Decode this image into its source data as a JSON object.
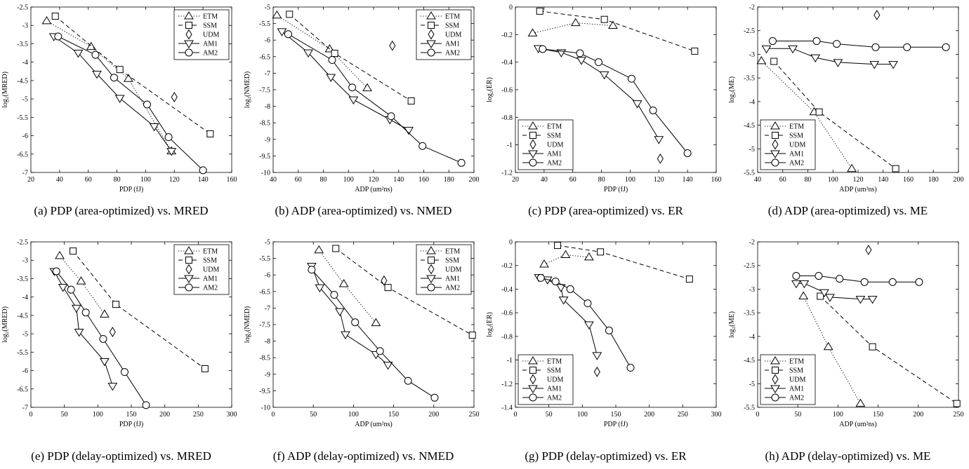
{
  "figure": {
    "panels": [
      {
        "caption": "(a) PDP (area-optimized) vs. MRED"
      },
      {
        "caption": "(b) ADP (area-optimized) vs. NMED"
      },
      {
        "caption": "(c) PDP (area-optimized) vs. ER"
      },
      {
        "caption": "(d) ADP (area-optimized) vs. ME"
      },
      {
        "caption": "(e) PDP (delay-optimized) vs. MRED"
      },
      {
        "caption": "(f) ADP (delay-optimized) vs. NMED"
      },
      {
        "caption": "(g) PDP (delay-optimized) vs. ER"
      },
      {
        "caption": "(h) ADP (delay-optimized) vs. ME"
      }
    ]
  },
  "chart_data": [
    {
      "type": "line",
      "xlabel": "PDP (fJ)",
      "ylabel": "log₂(MRED)",
      "xlim": [
        20,
        160
      ],
      "ylim": [
        -7,
        -2.5
      ],
      "xticks": [
        20,
        40,
        60,
        80,
        100,
        120,
        140,
        160
      ],
      "yticks": [
        -7,
        -6.5,
        -6,
        -5.5,
        -5,
        -4.5,
        -4,
        -3.5,
        -3,
        -2.5
      ],
      "legend_position": "top-right",
      "grid": false,
      "series": [
        {
          "name": "ETM",
          "points": [
            [
              31,
              -2.88
            ],
            [
              62,
              -3.58
            ],
            [
              88,
              -4.45
            ],
            [
              118,
              -6.42
            ]
          ]
        },
        {
          "name": "SSM",
          "points": [
            [
              37,
              -2.75
            ],
            [
              82,
              -4.2
            ],
            [
              145,
              -5.95
            ]
          ]
        },
        {
          "name": "UDM",
          "points": [
            [
              120,
              -4.95
            ]
          ]
        },
        {
          "name": "AM1",
          "points": [
            [
              36,
              -3.3
            ],
            [
              53,
              -3.75
            ],
            [
              66,
              -4.32
            ],
            [
              82,
              -4.98
            ],
            [
              106,
              -5.75
            ],
            [
              118,
              -6.42
            ]
          ]
        },
        {
          "name": "AM2",
          "points": [
            [
              39,
              -3.3
            ],
            [
              65,
              -3.8
            ],
            [
              78,
              -4.42
            ],
            [
              101,
              -5.15
            ],
            [
              116,
              -6.04
            ],
            [
              140,
              -6.94
            ]
          ]
        }
      ]
    },
    {
      "type": "line",
      "xlabel": "ADP (um²ns)",
      "ylabel": "log₂(NMED)",
      "xlim": [
        40,
        200
      ],
      "ylim": [
        -10,
        -5
      ],
      "xticks": [
        40,
        60,
        80,
        100,
        120,
        140,
        160,
        180,
        200
      ],
      "yticks": [
        -10,
        -9.5,
        -9,
        -8.5,
        -8,
        -7.5,
        -7,
        -6.5,
        -6,
        -5.5,
        -5
      ],
      "legend_position": "top-right",
      "grid": false,
      "series": [
        {
          "name": "ETM",
          "points": [
            [
              43,
              -5.25
            ],
            [
              85,
              -6.27
            ],
            [
              115,
              -7.45
            ]
          ]
        },
        {
          "name": "SSM",
          "points": [
            [
              53,
              -5.22
            ],
            [
              89,
              -6.4
            ],
            [
              150,
              -7.84
            ]
          ]
        },
        {
          "name": "UDM",
          "points": [
            [
              135,
              -6.17
            ]
          ]
        },
        {
          "name": "AM1",
          "points": [
            [
              47,
              -5.74
            ],
            [
              68,
              -6.38
            ],
            [
              86,
              -7.12
            ],
            [
              104,
              -7.8
            ],
            [
              133,
              -8.4
            ],
            [
              148,
              -8.72
            ]
          ]
        },
        {
          "name": "AM2",
          "points": [
            [
              52,
              -5.82
            ],
            [
              87,
              -6.6
            ],
            [
              103,
              -7.43
            ],
            [
              134,
              -8.3
            ],
            [
              159,
              -9.2
            ],
            [
              190,
              -9.71
            ]
          ]
        }
      ]
    },
    {
      "type": "line",
      "xlabel": "PDP (fJ)",
      "ylabel": "log₂(ER)",
      "xlim": [
        20,
        160
      ],
      "ylim": [
        -1.2,
        0
      ],
      "xticks": [
        20,
        40,
        60,
        80,
        100,
        120,
        140,
        160
      ],
      "yticks": [
        -1.2,
        -1,
        -0.8,
        -0.6,
        -0.4,
        -0.2,
        0
      ],
      "legend_position": "bottom-left",
      "grid": false,
      "series": [
        {
          "name": "ETM",
          "points": [
            [
              32,
              -0.19
            ],
            [
              62,
              -0.115
            ],
            [
              88,
              -0.135
            ]
          ]
        },
        {
          "name": "SSM",
          "points": [
            [
              37,
              -0.03
            ],
            [
              82,
              -0.09
            ],
            [
              145,
              -0.32
            ]
          ]
        },
        {
          "name": "UDM",
          "points": [
            [
              121,
              -1.1
            ]
          ]
        },
        {
          "name": "AM1",
          "points": [
            [
              36,
              -0.3
            ],
            [
              52,
              -0.33
            ],
            [
              66,
              -0.385
            ],
            [
              82,
              -0.49
            ],
            [
              105,
              -0.7
            ],
            [
              120,
              -0.96
            ]
          ]
        },
        {
          "name": "AM2",
          "points": [
            [
              39,
              -0.305
            ],
            [
              65,
              -0.335
            ],
            [
              78,
              -0.4
            ],
            [
              101,
              -0.52
            ],
            [
              116,
              -0.75
            ],
            [
              140,
              -1.06
            ]
          ]
        }
      ]
    },
    {
      "type": "line",
      "xlabel": "ADP (um²ns)",
      "ylabel": "log₂(ME)",
      "xlim": [
        40,
        200
      ],
      "ylim": [
        -5.5,
        -2
      ],
      "xticks": [
        40,
        60,
        80,
        100,
        120,
        140,
        160,
        180,
        200
      ],
      "yticks": [
        -5.5,
        -5,
        -4.5,
        -4,
        -3.5,
        -3,
        -2.5,
        -2
      ],
      "legend_position": "bottom-left",
      "grid": false,
      "series": [
        {
          "name": "ETM",
          "points": [
            [
              43,
              -3.14
            ],
            [
              85,
              -4.22
            ],
            [
              115,
              -5.42
            ]
          ]
        },
        {
          "name": "SSM",
          "points": [
            [
              53,
              -3.15
            ],
            [
              89,
              -4.22
            ],
            [
              150,
              -5.42
            ]
          ]
        },
        {
          "name": "UDM",
          "points": [
            [
              135,
              -2.17
            ]
          ]
        },
        {
          "name": "AM1",
          "points": [
            [
              47,
              -2.88
            ],
            [
              68,
              -2.88
            ],
            [
              86,
              -3.07
            ],
            [
              104,
              -3.17
            ],
            [
              133,
              -3.21
            ],
            [
              148,
              -3.21
            ]
          ]
        },
        {
          "name": "AM2",
          "points": [
            [
              52,
              -2.72
            ],
            [
              87,
              -2.72
            ],
            [
              103,
              -2.78
            ],
            [
              134,
              -2.85
            ],
            [
              159,
              -2.85
            ],
            [
              190,
              -2.85
            ]
          ]
        }
      ]
    },
    {
      "type": "line",
      "xlabel": "PDP (fJ)",
      "ylabel": "log₂(MRED)",
      "xlim": [
        0,
        300
      ],
      "ylim": [
        -7,
        -2.5
      ],
      "xticks": [
        0,
        50,
        100,
        150,
        200,
        250,
        300
      ],
      "yticks": [
        -7,
        -6.5,
        -6,
        -5.5,
        -5,
        -4.5,
        -4,
        -3.5,
        -3,
        -2.5
      ],
      "legend_position": "top-right",
      "grid": false,
      "series": [
        {
          "name": "ETM",
          "points": [
            [
              43,
              -2.88
            ],
            [
              75,
              -3.57
            ],
            [
              110,
              -4.47
            ]
          ]
        },
        {
          "name": "SSM",
          "points": [
            [
              63,
              -2.75
            ],
            [
              127,
              -4.2
            ],
            [
              260,
              -5.95
            ]
          ]
        },
        {
          "name": "UDM",
          "points": [
            [
              122,
              -4.95
            ]
          ]
        },
        {
          "name": "AM1",
          "points": [
            [
              35,
              -3.3
            ],
            [
              48,
              -3.73
            ],
            [
              68,
              -4.3
            ],
            [
              72,
              -4.95
            ],
            [
              110,
              -5.75
            ],
            [
              122,
              -6.42
            ]
          ]
        },
        {
          "name": "AM2",
          "points": [
            [
              38,
              -3.3
            ],
            [
              60,
              -3.8
            ],
            [
              82,
              -4.42
            ],
            [
              108,
              -5.14
            ],
            [
              140,
              -6.04
            ],
            [
              172,
              -6.94
            ]
          ]
        }
      ]
    },
    {
      "type": "line",
      "xlabel": "ADP (um²ns)",
      "ylabel": "log₂(NMED)",
      "xlim": [
        0,
        250
      ],
      "ylim": [
        -10,
        -5
      ],
      "xticks": [
        0,
        50,
        100,
        150,
        200,
        250
      ],
      "yticks": [
        -10,
        -9.5,
        -9,
        -8.5,
        -8,
        -7.5,
        -7,
        -6.5,
        -6,
        -5.5,
        -5
      ],
      "legend_position": "top-right",
      "grid": false,
      "series": [
        {
          "name": "ETM",
          "points": [
            [
              57,
              -5.25
            ],
            [
              88,
              -6.27
            ],
            [
              128,
              -7.45
            ]
          ]
        },
        {
          "name": "SSM",
          "points": [
            [
              78,
              -5.2
            ],
            [
              143,
              -6.38
            ],
            [
              248,
              -7.82
            ]
          ]
        },
        {
          "name": "UDM",
          "points": [
            [
              138,
              -6.17
            ]
          ]
        },
        {
          "name": "AM1",
          "points": [
            [
              48,
              -5.73
            ],
            [
              58,
              -6.38
            ],
            [
              83,
              -7.1
            ],
            [
              90,
              -7.8
            ],
            [
              128,
              -8.4
            ],
            [
              143,
              -8.72
            ]
          ]
        },
        {
          "name": "AM2",
          "points": [
            [
              48,
              -5.84
            ],
            [
              76,
              -6.6
            ],
            [
              102,
              -7.43
            ],
            [
              133,
              -8.3
            ],
            [
              168,
              -9.2
            ],
            [
              201,
              -9.71
            ]
          ]
        }
      ]
    },
    {
      "type": "line",
      "xlabel": "PDP (fJ)",
      "ylabel": "log₂(ER)",
      "xlim": [
        0,
        300
      ],
      "ylim": [
        -1.4,
        0
      ],
      "xticks": [
        0,
        50,
        100,
        150,
        200,
        250,
        300
      ],
      "yticks": [
        -1.4,
        -1.2,
        -1,
        -0.8,
        -0.6,
        -0.4,
        -0.2,
        0
      ],
      "legend_position": "bottom-left",
      "grid": false,
      "series": [
        {
          "name": "ETM",
          "points": [
            [
              43,
              -0.19
            ],
            [
              75,
              -0.11
            ],
            [
              110,
              -0.13
            ]
          ]
        },
        {
          "name": "SSM",
          "points": [
            [
              63,
              -0.03
            ],
            [
              127,
              -0.085
            ],
            [
              260,
              -0.315
            ]
          ]
        },
        {
          "name": "UDM",
          "points": [
            [
              122,
              -1.1
            ]
          ]
        },
        {
          "name": "AM1",
          "points": [
            [
              35,
              -0.3
            ],
            [
              48,
              -0.32
            ],
            [
              68,
              -0.385
            ],
            [
              72,
              -0.49
            ],
            [
              110,
              -0.7
            ],
            [
              122,
              -0.96
            ]
          ]
        },
        {
          "name": "AM2",
          "points": [
            [
              38,
              -0.305
            ],
            [
              60,
              -0.335
            ],
            [
              82,
              -0.4
            ],
            [
              108,
              -0.52
            ],
            [
              140,
              -0.75
            ],
            [
              172,
              -1.065
            ]
          ]
        }
      ]
    },
    {
      "type": "line",
      "xlabel": "ADP (um²ns)",
      "ylabel": "log₂(ME)",
      "xlim": [
        0,
        250
      ],
      "ylim": [
        -5.5,
        -2
      ],
      "xticks": [
        0,
        50,
        100,
        150,
        200,
        250
      ],
      "yticks": [
        -5.5,
        -5,
        -4.5,
        -4,
        -3.5,
        -3,
        -2.5,
        -2
      ],
      "legend_position": "bottom-left",
      "grid": false,
      "series": [
        {
          "name": "ETM",
          "points": [
            [
              57,
              -3.15
            ],
            [
              88,
              -4.22
            ],
            [
              128,
              -5.42
            ]
          ]
        },
        {
          "name": "SSM",
          "points": [
            [
              78,
              -3.15
            ],
            [
              143,
              -4.22
            ],
            [
              248,
              -5.42
            ]
          ]
        },
        {
          "name": "UDM",
          "points": [
            [
              138,
              -2.17
            ]
          ]
        },
        {
          "name": "AM1",
          "points": [
            [
              48,
              -2.88
            ],
            [
              58,
              -2.88
            ],
            [
              83,
              -3.07
            ],
            [
              90,
              -3.17
            ],
            [
              128,
              -3.21
            ],
            [
              143,
              -3.21
            ]
          ]
        },
        {
          "name": "AM2",
          "points": [
            [
              48,
              -2.72
            ],
            [
              76,
              -2.72
            ],
            [
              102,
              -2.78
            ],
            [
              133,
              -2.85
            ],
            [
              168,
              -2.85
            ],
            [
              201,
              -2.85
            ]
          ]
        }
      ]
    }
  ],
  "series_styles": {
    "ETM": {
      "marker": "triangle-up",
      "line": "dotted",
      "color": "#000000"
    },
    "SSM": {
      "marker": "square",
      "line": "dashed",
      "color": "#000000"
    },
    "UDM": {
      "marker": "diamond",
      "line": "none",
      "color": "#000000"
    },
    "AM1": {
      "marker": "triangle-down",
      "line": "solid",
      "color": "#000000"
    },
    "AM2": {
      "marker": "circle",
      "line": "solid",
      "color": "#000000"
    }
  }
}
